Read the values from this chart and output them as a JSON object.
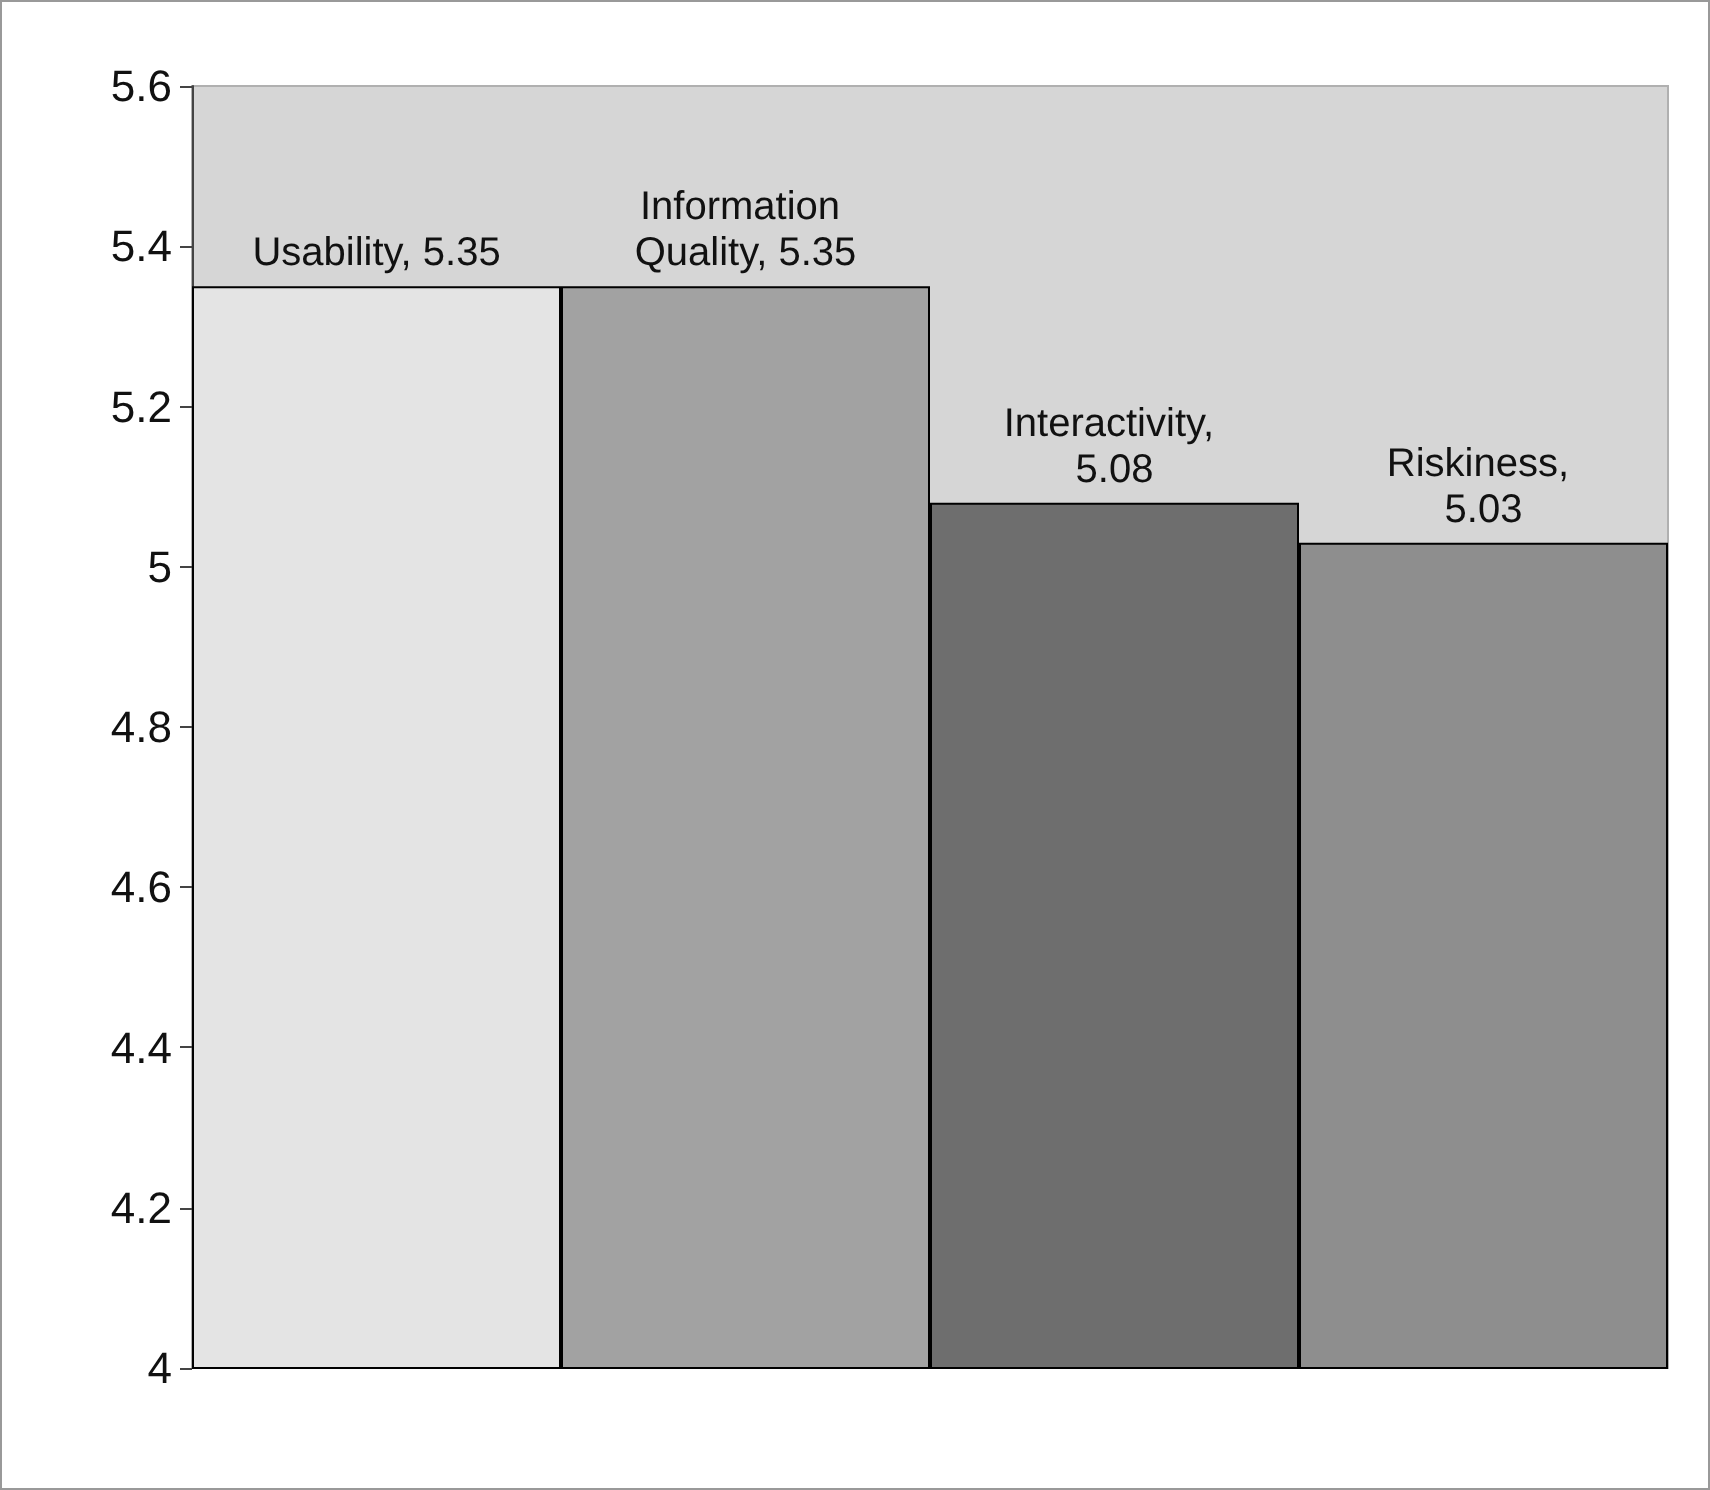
{
  "chart_data": {
    "type": "bar",
    "categories": [
      null,
      null,
      null,
      null
    ],
    "values": [
      5.35,
      5.35,
      5.08,
      5.03
    ],
    "colors": [
      "#e4e4e4",
      "#a2a2a2",
      "#6e6e6e",
      "#8e8e8e"
    ],
    "value_labels": [
      "Usability, 5.35",
      "Information Quality, 5.35",
      "Interactivity, 5.08",
      "Riskiness, 5.03"
    ],
    "ylim": [
      4,
      5.6
    ],
    "yticks": [
      4,
      4.2,
      4.4,
      4.6,
      4.8,
      5,
      5.2,
      5.4,
      5.6
    ],
    "tick_labels": "y"
  }
}
